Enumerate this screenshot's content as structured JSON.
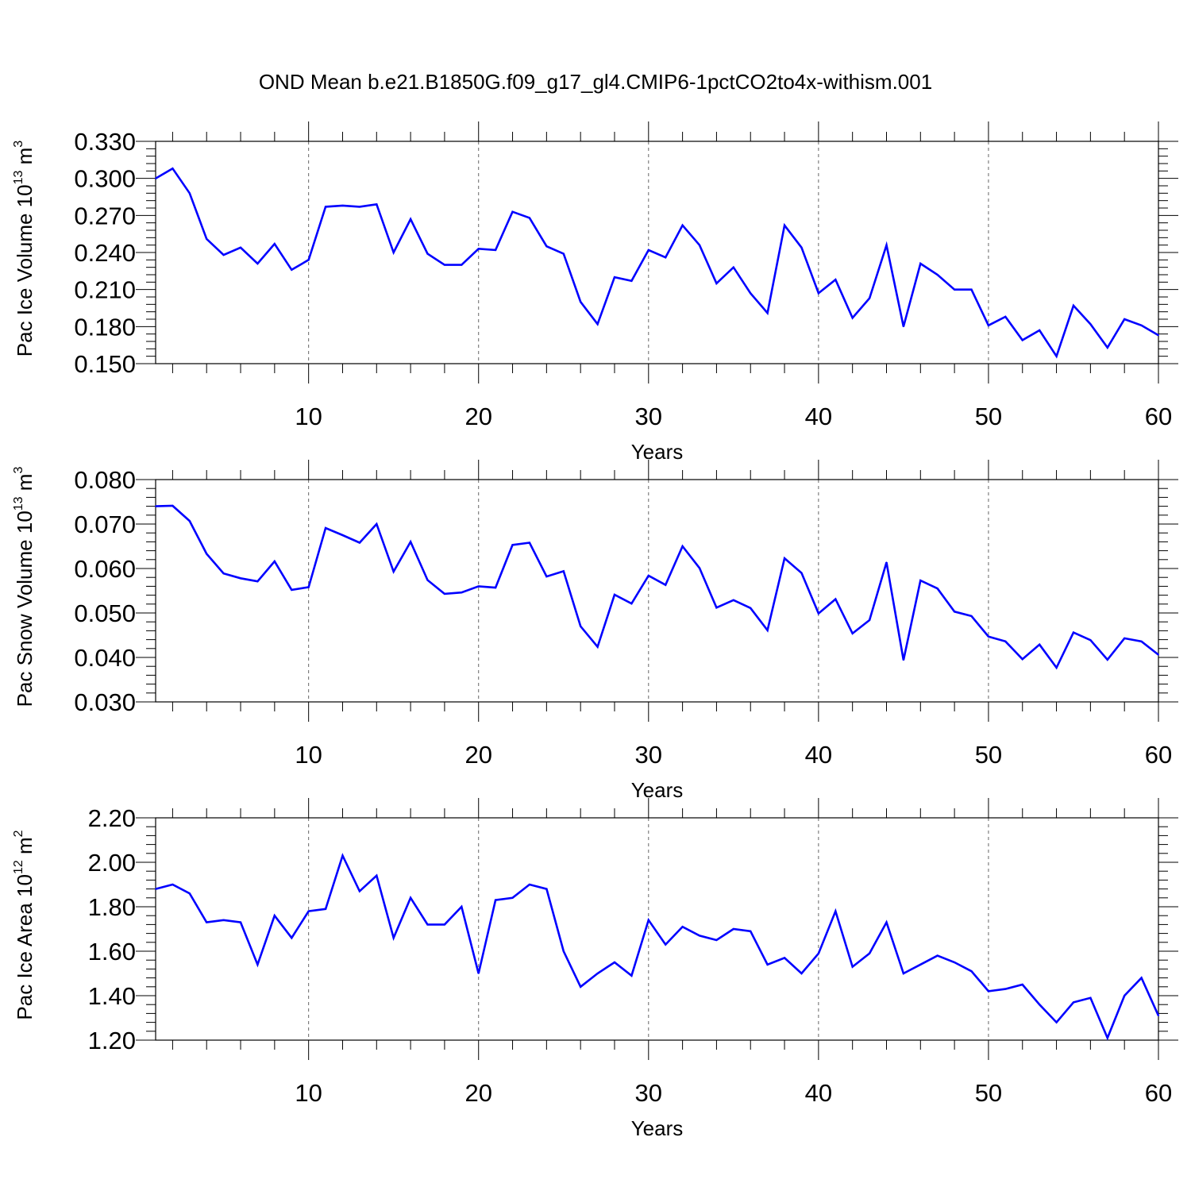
{
  "title": "OND Mean b.e21.B1850G.f09_g17_gl4.CMIP6-1pctCO2to4x-withism.001",
  "chart_data": [
    {
      "type": "line",
      "ylabel": "Pac Ice Volume 10",
      "ylabel_exp": "13",
      "ylabel_unit": " m",
      "ylabel_unit_exp": "3",
      "xlabel": "Years",
      "xlim": [
        1,
        60
      ],
      "ylim": [
        0.15,
        0.33
      ],
      "yticks": [
        0.15,
        0.18,
        0.21,
        0.24,
        0.27,
        0.3,
        0.33
      ],
      "ytick_labels": [
        "0.150",
        "0.180",
        "0.210",
        "0.240",
        "0.270",
        "0.300",
        "0.330"
      ],
      "xticks": [
        10,
        20,
        30,
        40,
        50,
        60
      ],
      "xtick_labels": [
        "10",
        "20",
        "30",
        "40",
        "50",
        "60"
      ],
      "grid": "vertical-dashed",
      "color": "#0000ff",
      "series": [
        {
          "x": [
            1,
            2,
            3,
            4,
            5,
            6,
            7,
            8,
            9,
            10,
            11,
            12,
            13,
            14,
            15,
            16,
            17,
            18,
            19,
            20,
            21,
            22,
            23,
            24,
            25,
            26,
            27,
            28,
            29,
            30,
            31,
            32,
            33,
            34,
            35,
            36,
            37,
            38,
            39,
            40,
            41,
            42,
            43,
            44,
            45,
            46,
            47,
            48,
            49,
            50,
            51,
            52,
            53,
            54,
            55,
            56,
            57,
            58,
            59,
            60
          ],
          "values": [
            0.3,
            0.308,
            0.288,
            0.251,
            0.238,
            0.244,
            0.231,
            0.247,
            0.226,
            0.234,
            0.277,
            0.278,
            0.277,
            0.279,
            0.24,
            0.267,
            0.239,
            0.23,
            0.23,
            0.243,
            0.242,
            0.273,
            0.268,
            0.245,
            0.239,
            0.2,
            0.182,
            0.22,
            0.217,
            0.242,
            0.236,
            0.262,
            0.246,
            0.215,
            0.228,
            0.207,
            0.191,
            0.262,
            0.244,
            0.207,
            0.218,
            0.187,
            0.203,
            0.246,
            0.18,
            0.231,
            0.222,
            0.21,
            0.21,
            0.181,
            0.188,
            0.169,
            0.177,
            0.156,
            0.197,
            0.182,
            0.163,
            0.186,
            0.181,
            0.173
          ]
        }
      ]
    },
    {
      "type": "line",
      "ylabel": "Pac Snow Volume 10",
      "ylabel_exp": "13",
      "ylabel_unit": " m",
      "ylabel_unit_exp": "3",
      "xlabel": "Years",
      "xlim": [
        1,
        60
      ],
      "ylim": [
        0.03,
        0.08
      ],
      "yticks": [
        0.03,
        0.04,
        0.05,
        0.06,
        0.07,
        0.08
      ],
      "ytick_labels": [
        "0.030",
        "0.040",
        "0.050",
        "0.060",
        "0.070",
        "0.080"
      ],
      "xticks": [
        10,
        20,
        30,
        40,
        50,
        60
      ],
      "xtick_labels": [
        "10",
        "20",
        "30",
        "40",
        "50",
        "60"
      ],
      "grid": "vertical-dashed",
      "color": "#0000ff",
      "series": [
        {
          "x": [
            1,
            2,
            3,
            4,
            5,
            6,
            7,
            8,
            9,
            10,
            11,
            12,
            13,
            14,
            15,
            16,
            17,
            18,
            19,
            20,
            21,
            22,
            23,
            24,
            25,
            26,
            27,
            28,
            29,
            30,
            31,
            32,
            33,
            34,
            35,
            36,
            37,
            38,
            39,
            40,
            41,
            42,
            43,
            44,
            45,
            46,
            47,
            48,
            49,
            50,
            51,
            52,
            53,
            54,
            55,
            56,
            57,
            58,
            59,
            60
          ],
          "values": [
            0.074,
            0.0741,
            0.0707,
            0.0633,
            0.0589,
            0.0578,
            0.0571,
            0.0616,
            0.0552,
            0.0558,
            0.0691,
            0.0675,
            0.0658,
            0.07,
            0.0593,
            0.066,
            0.0574,
            0.0543,
            0.0546,
            0.056,
            0.0557,
            0.0653,
            0.0658,
            0.0582,
            0.0594,
            0.047,
            0.0424,
            0.0541,
            0.0521,
            0.0584,
            0.0563,
            0.065,
            0.0601,
            0.0512,
            0.0529,
            0.0511,
            0.0461,
            0.0623,
            0.059,
            0.0499,
            0.0531,
            0.0454,
            0.0484,
            0.0614,
            0.0394,
            0.0573,
            0.0555,
            0.0503,
            0.0493,
            0.0447,
            0.0436,
            0.0396,
            0.0429,
            0.0377,
            0.0456,
            0.0439,
            0.0395,
            0.0443,
            0.0436,
            0.0406
          ]
        }
      ]
    },
    {
      "type": "line",
      "ylabel": "Pac Ice Area 10",
      "ylabel_exp": "12",
      "ylabel_unit": " m",
      "ylabel_unit_exp": "2",
      "xlabel": "Years",
      "xlim": [
        1,
        60
      ],
      "ylim": [
        1.2,
        2.2
      ],
      "yticks": [
        1.2,
        1.4,
        1.6,
        1.8,
        2.0,
        2.2
      ],
      "ytick_labels": [
        "1.20",
        "1.40",
        "1.60",
        "1.80",
        "2.00",
        "2.20"
      ],
      "xticks": [
        10,
        20,
        30,
        40,
        50,
        60
      ],
      "xtick_labels": [
        "10",
        "20",
        "30",
        "40",
        "50",
        "60"
      ],
      "grid": "vertical-dashed",
      "color": "#0000ff",
      "series": [
        {
          "x": [
            1,
            2,
            3,
            4,
            5,
            6,
            7,
            8,
            9,
            10,
            11,
            12,
            13,
            14,
            15,
            16,
            17,
            18,
            19,
            20,
            21,
            22,
            23,
            24,
            25,
            26,
            27,
            28,
            29,
            30,
            31,
            32,
            33,
            34,
            35,
            36,
            37,
            38,
            39,
            40,
            41,
            42,
            43,
            44,
            45,
            46,
            47,
            48,
            49,
            50,
            51,
            52,
            53,
            54,
            55,
            56,
            57,
            58,
            59,
            60
          ],
          "values": [
            1.88,
            1.9,
            1.86,
            1.73,
            1.74,
            1.73,
            1.54,
            1.76,
            1.66,
            1.78,
            1.79,
            2.03,
            1.87,
            1.94,
            1.66,
            1.84,
            1.72,
            1.72,
            1.8,
            1.5,
            1.83,
            1.84,
            1.9,
            1.88,
            1.6,
            1.44,
            1.5,
            1.55,
            1.49,
            1.74,
            1.63,
            1.71,
            1.67,
            1.65,
            1.7,
            1.69,
            1.54,
            1.57,
            1.5,
            1.59,
            1.78,
            1.53,
            1.59,
            1.73,
            1.5,
            1.54,
            1.58,
            1.55,
            1.51,
            1.42,
            1.43,
            1.45,
            1.36,
            1.28,
            1.37,
            1.39,
            1.21,
            1.4,
            1.48,
            1.31
          ]
        }
      ]
    }
  ]
}
